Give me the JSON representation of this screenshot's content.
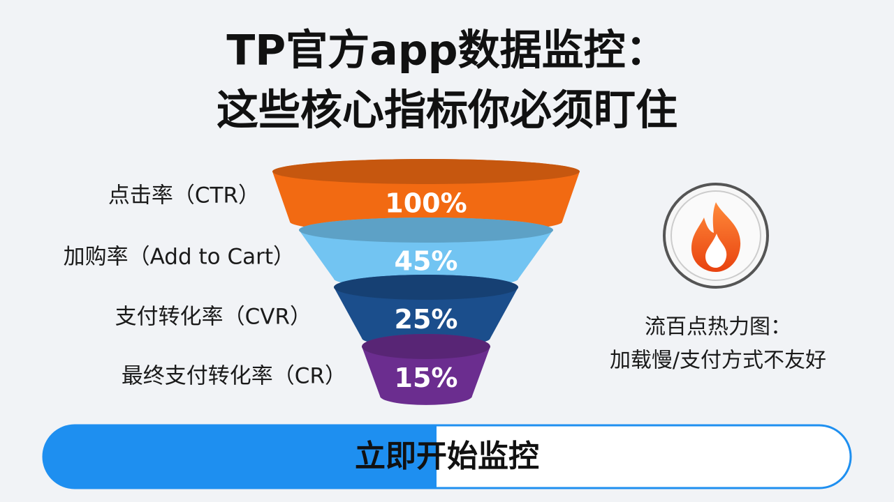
{
  "title": [
    "TP官方app数据监控：",
    "这些核心指标你必须盯住"
  ],
  "chart_data": {
    "type": "funnel",
    "categories": [
      "点击率（CTR）",
      "加购率（Add to Cart）",
      "支付转化率（CVR）",
      "最终支付转化率（CR）"
    ],
    "values": [
      100,
      45,
      25,
      15
    ],
    "value_labels": [
      "100%",
      "45%",
      "25%",
      "15%"
    ],
    "colors": [
      "#f26a12",
      "#72c4f2",
      "#1b4e8c",
      "#6b2d8f"
    ]
  },
  "side_note": [
    "流百点热力图：",
    "加载慢/支付方式不友好"
  ],
  "button": "立即开始监控"
}
